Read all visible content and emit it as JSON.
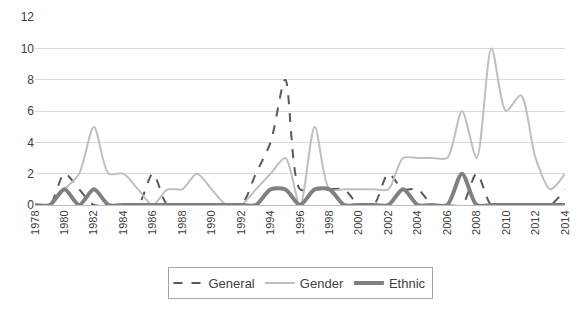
{
  "chart_data": {
    "type": "line",
    "x": [
      1978,
      1979,
      1980,
      1981,
      1982,
      1983,
      1984,
      1985,
      1986,
      1987,
      1988,
      1989,
      1990,
      1991,
      1992,
      1993,
      1994,
      1995,
      1996,
      1997,
      1998,
      1999,
      2000,
      2001,
      2002,
      2003,
      2004,
      2005,
      2006,
      2007,
      2008,
      2009,
      2010,
      2011,
      2012,
      2013,
      2014
    ],
    "series": [
      {
        "name": "General",
        "color": "#595959",
        "line_style": "dashed",
        "values": [
          0,
          0,
          2,
          1,
          0,
          0,
          0,
          0,
          2,
          0,
          0,
          0,
          0,
          0,
          0,
          2,
          4,
          8,
          1,
          1,
          1,
          1,
          0,
          0,
          2,
          1,
          1,
          0,
          0,
          0,
          2,
          0,
          0,
          0,
          0,
          0,
          1
        ]
      },
      {
        "name": "Gender",
        "color": "#bfbfbf",
        "line_style": "solid",
        "values": [
          0,
          0,
          1,
          2,
          5,
          2,
          2,
          1,
          0,
          1,
          1,
          2,
          1,
          0,
          0,
          1,
          2,
          3,
          0,
          5,
          1,
          1,
          1,
          1,
          1,
          3,
          3,
          3,
          3,
          6,
          3,
          10,
          6,
          7,
          3,
          1,
          2
        ]
      },
      {
        "name": "Ethnic",
        "color": "#808080",
        "line_style": "thick",
        "values": [
          0,
          0,
          1,
          0,
          1,
          0,
          0,
          0,
          0,
          0,
          0,
          0,
          0,
          0,
          0,
          0,
          1,
          1,
          0,
          1,
          1,
          0,
          0,
          0,
          0,
          1,
          0,
          0,
          0,
          2,
          0,
          0,
          0,
          0,
          0,
          0,
          0
        ]
      }
    ],
    "xlim": [
      1978,
      2014
    ],
    "xticks": [
      1978,
      1980,
      1982,
      1984,
      1986,
      1988,
      1990,
      1992,
      1994,
      1996,
      1998,
      2000,
      2002,
      2004,
      2006,
      2008,
      2010,
      2012,
      2014
    ],
    "ylim": [
      0,
      12
    ],
    "yticks": [
      0,
      2,
      4,
      6,
      8,
      10,
      12
    ],
    "grid": true,
    "legend": "bottom"
  }
}
